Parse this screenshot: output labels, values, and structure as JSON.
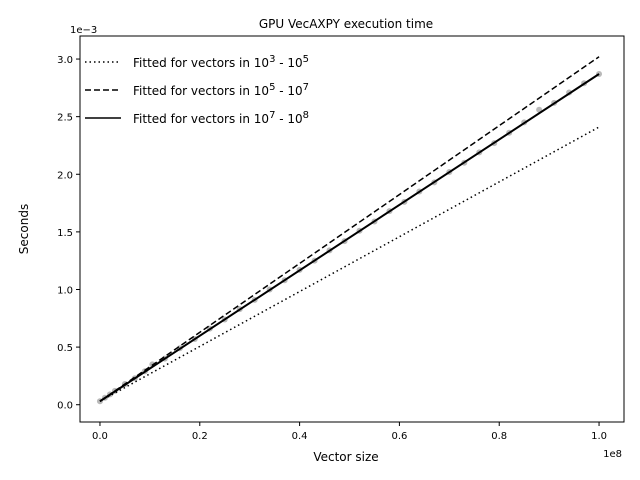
{
  "chart_data": {
    "type": "line",
    "title": "GPU VecAXPY execution time",
    "xlabel": "Vector size",
    "ylabel": "Seconds",
    "x_scale_label": "1e8",
    "y_scale_label": "1e−3",
    "xlim": [
      -0.04,
      1.05
    ],
    "ylim": [
      -0.15,
      3.2
    ],
    "x_ticks": [
      0.0,
      0.2,
      0.4,
      0.6,
      0.8,
      1.0
    ],
    "x_tick_labels": [
      "0.0",
      "0.2",
      "0.4",
      "0.6",
      "0.8",
      "1.0"
    ],
    "y_ticks": [
      0.0,
      0.5,
      1.0,
      1.5,
      2.0,
      2.5,
      3.0
    ],
    "y_tick_labels": [
      "0.0",
      "0.5",
      "1.0",
      "1.5",
      "2.0",
      "2.5",
      "3.0"
    ],
    "grid": false,
    "legend_position": "top-left",
    "colors": {
      "lines": "#000000",
      "measurements": "#7f7f7f"
    },
    "series": [
      {
        "name": "Fitted for vectors in 10^3 - 10^5",
        "legend_base": "Fitted for vectors in 10",
        "legend_exp1": "3",
        "legend_mid": " - 10",
        "legend_exp2": "5",
        "style": "dotted",
        "x": [
          0.0,
          1.0
        ],
        "y": [
          0.03,
          2.41
        ]
      },
      {
        "name": "Fitted for vectors in 10^5 - 10^7",
        "legend_base": "Fitted for vectors in 10",
        "legend_exp1": "5",
        "legend_mid": " - 10",
        "legend_exp2": "7",
        "style": "dashed",
        "x": [
          0.0,
          1.0
        ],
        "y": [
          0.03,
          3.02
        ]
      },
      {
        "name": "Fitted for vectors in 10^7 - 10^8",
        "legend_base": "Fitted for vectors in 10",
        "legend_exp1": "7",
        "legend_mid": " - 10",
        "legend_exp2": "8",
        "style": "solid",
        "x": [
          0.0,
          1.0
        ],
        "y": [
          0.03,
          2.87
        ]
      }
    ],
    "measurements": {
      "x": [
        0.0,
        0.01,
        0.02,
        0.03,
        0.05,
        0.07,
        0.09,
        0.105,
        0.13,
        0.16,
        0.19,
        0.22,
        0.25,
        0.28,
        0.31,
        0.34,
        0.37,
        0.4,
        0.43,
        0.46,
        0.49,
        0.52,
        0.55,
        0.58,
        0.61,
        0.64,
        0.67,
        0.7,
        0.73,
        0.76,
        0.79,
        0.82,
        0.85,
        0.88,
        0.91,
        0.94,
        0.97,
        1.0
      ],
      "y": [
        0.03,
        0.06,
        0.09,
        0.12,
        0.18,
        0.23,
        0.29,
        0.35,
        0.4,
        0.49,
        0.57,
        0.66,
        0.74,
        0.83,
        0.91,
        1.0,
        1.08,
        1.17,
        1.25,
        1.34,
        1.42,
        1.51,
        1.59,
        1.68,
        1.76,
        1.85,
        1.93,
        2.02,
        2.1,
        2.19,
        2.27,
        2.36,
        2.45,
        2.56,
        2.62,
        2.71,
        2.79,
        2.87
      ]
    }
  }
}
